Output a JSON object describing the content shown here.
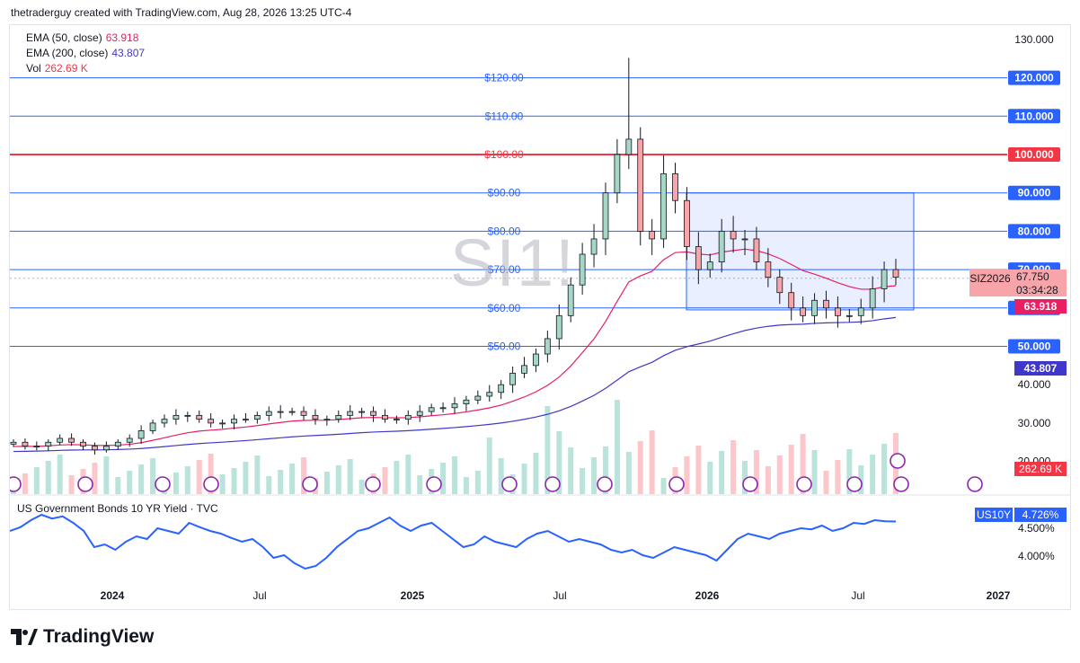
{
  "header": {
    "attribution": "thetraderguy created with TradingView.com, Aug 28, 2026 13:25 UTC-4"
  },
  "watermark": "SI1!",
  "legend": {
    "ema50": {
      "label": "EMA (50, close)",
      "value": "63.918",
      "color": "#e91e63"
    },
    "ema200": {
      "label": "EMA (200, close)",
      "value": "43.807",
      "color": "#3f37c9"
    },
    "vol": {
      "label": "Vol",
      "value": "262.69 K",
      "color": "#f23645"
    }
  },
  "price_badges": {
    "symbol": "SIZ2026",
    "last": "67.750",
    "countdown": "03:34:28",
    "ema50": "63.918",
    "ema200": "43.807",
    "volume": "262.69 K"
  },
  "lower_pane": {
    "title": "US Government Bonds 10 YR Yield · TVC",
    "symbol": "US10Y",
    "last": "4.726%",
    "ticks": [
      "4.500%",
      "4.000%"
    ]
  },
  "footer": {
    "brand": "TradingView"
  },
  "chart_data": [
    {
      "type": "candlestick",
      "title": "SI1!",
      "y_axis_ticks": [
        "130.000",
        "120.000",
        "110.000",
        "100.000",
        "90.000",
        "80.000",
        "70.000",
        "60.000",
        "50.000",
        "40.000",
        "30.000",
        "20.000"
      ],
      "ylim": [
        20,
        130
      ],
      "x_axis_ticks": [
        "2024",
        "Jul",
        "2025",
        "Jul",
        "2026",
        "Jul",
        "2027"
      ],
      "horizontal_levels": [
        {
          "value": 120,
          "label": "$120.00",
          "axis_label": "120.000",
          "color": "#2962ff"
        },
        {
          "value": 110,
          "label": "$110.00",
          "axis_label": "110.000",
          "color": "#2962ff"
        },
        {
          "value": 100,
          "label": "$100.00",
          "axis_label": "100.000",
          "color": "#f23645"
        },
        {
          "value": 90,
          "label": "$90.00",
          "axis_label": "90.000",
          "color": "#2962ff"
        },
        {
          "value": 80,
          "label": "$80.00",
          "axis_label": "80.000",
          "color": "#2962ff"
        },
        {
          "value": 70,
          "label": "$70.00",
          "axis_label": "70.000",
          "color": "#2962ff"
        },
        {
          "value": 60,
          "label": "$60.00",
          "axis_label": "60.000",
          "color": "#2962ff"
        },
        {
          "value": 50,
          "label": "$50.00",
          "axis_label": "50.000",
          "color": "#2962ff"
        }
      ],
      "range_box": {
        "from": "2025-12",
        "to": "2026-09",
        "low": 59.5,
        "high": 90
      },
      "last_close": 67.75,
      "candles_approx_close": [
        25,
        24,
        24,
        25,
        26,
        25,
        24,
        23,
        24,
        25,
        26,
        28,
        30,
        31,
        32,
        32,
        31,
        30,
        30,
        31,
        31,
        32,
        33,
        33,
        33,
        32,
        31,
        31,
        32,
        33,
        33,
        32,
        31,
        31,
        32,
        33,
        34,
        34,
        35,
        36,
        37,
        38,
        40,
        43,
        45,
        48,
        52,
        58,
        66,
        74,
        78,
        90,
        100,
        104,
        80,
        78,
        95,
        88,
        76,
        70,
        72,
        80,
        78,
        78,
        72,
        68,
        64,
        60,
        58,
        62,
        60,
        58,
        58,
        60,
        65,
        70,
        68
      ]
    },
    {
      "type": "line",
      "title": "US Government Bonds 10 YR Yield · TVC",
      "y_axis_ticks": [
        "4.500%",
        "4.000%"
      ],
      "last_value": 4.726,
      "values_approx": [
        4.55,
        4.62,
        4.75,
        4.85,
        4.78,
        4.82,
        4.7,
        4.55,
        4.25,
        4.3,
        4.2,
        4.35,
        4.45,
        4.4,
        4.6,
        4.55,
        4.5,
        4.7,
        4.62,
        4.55,
        4.5,
        4.42,
        4.35,
        4.4,
        4.25,
        4.05,
        4.1,
        3.95,
        3.85,
        3.9,
        4.05,
        4.25,
        4.4,
        4.55,
        4.6,
        4.7,
        4.8,
        4.65,
        4.55,
        4.65,
        4.7,
        4.55,
        4.4,
        4.25,
        4.3,
        4.45,
        4.35,
        4.3,
        4.25,
        4.4,
        4.5,
        4.55,
        4.45,
        4.35,
        4.4,
        4.35,
        4.3,
        4.2,
        4.15,
        4.2,
        4.1,
        4.05,
        4.15,
        4.25,
        4.2,
        4.15,
        4.1,
        4.0,
        4.2,
        4.4,
        4.5,
        4.45,
        4.4,
        4.5,
        4.55,
        4.6,
        4.58,
        4.65,
        4.55,
        4.6,
        4.7,
        4.68,
        4.75,
        4.73,
        4.726
      ]
    }
  ]
}
